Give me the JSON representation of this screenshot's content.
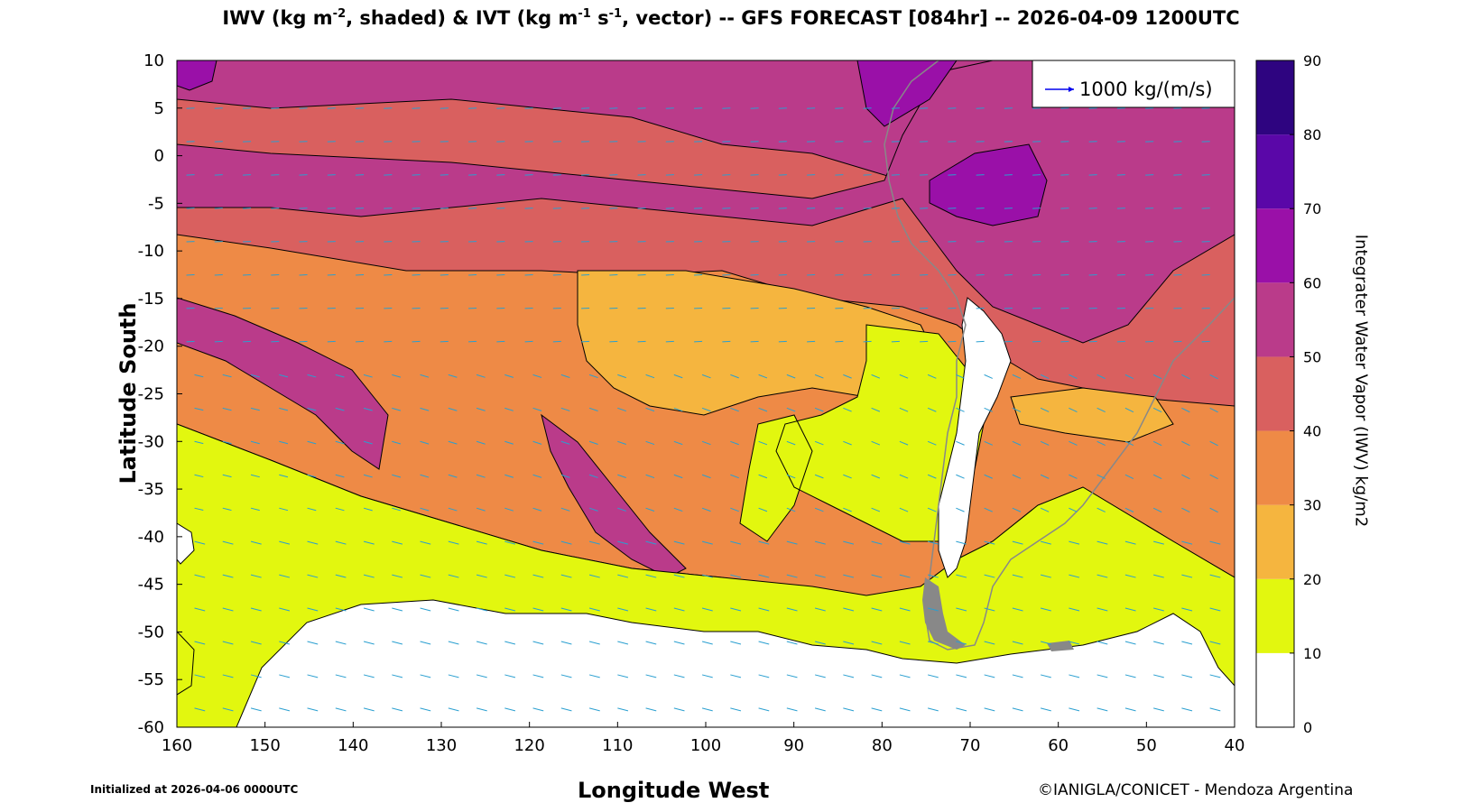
{
  "title": {
    "part1": "IWV (kg m",
    "sup1": "-2",
    "part2": ", shaded) & IVT (kg m",
    "sup2": "-1",
    "part3": " s",
    "sup3": "-1",
    "part4": ", vector) -- GFS FORECAST [084hr] -- 2026-04-09 1200UTC"
  },
  "axes": {
    "xlabel": "Longitude West",
    "ylabel": "Latitude South",
    "xticks": [
      "160",
      "150",
      "140",
      "130",
      "120",
      "110",
      "100",
      "90",
      "80",
      "70",
      "60",
      "50",
      "40"
    ],
    "yticks": [
      "10",
      "5",
      "0",
      "-5",
      "-10",
      "-15",
      "-20",
      "-25",
      "-30",
      "-35",
      "-40",
      "-45",
      "-50",
      "-55",
      "-60"
    ],
    "xlim": [
      160,
      40
    ],
    "ylim": [
      -60,
      10
    ]
  },
  "legend": {
    "label": "1000 kg/(m/s)",
    "arrow_color": "#0000ee"
  },
  "colorbar": {
    "label": "Integrater Water Vapor (IWV) kg/m2",
    "ticks": [
      "90",
      "80",
      "70",
      "60",
      "50",
      "40",
      "30",
      "20",
      "10",
      "0"
    ],
    "levels": [
      {
        "range": [
          0,
          10
        ],
        "color": "#ffffff"
      },
      {
        "range": [
          10,
          20
        ],
        "color": "#e2f70f"
      },
      {
        "range": [
          20,
          30
        ],
        "color": "#f5b53f"
      },
      {
        "range": [
          30,
          40
        ],
        "color": "#ee8a46"
      },
      {
        "range": [
          40,
          50
        ],
        "color": "#d9605f"
      },
      {
        "range": [
          50,
          60
        ],
        "color": "#ba3b8a"
      },
      {
        "range": [
          60,
          70
        ],
        "color": "#9a10a8"
      },
      {
        "range": [
          70,
          80
        ],
        "color": "#5a07a8"
      },
      {
        "range": [
          80,
          90
        ],
        "color": "#2e0480"
      }
    ]
  },
  "vector_color": "#2a9fd0",
  "land_outline_color": "#888888",
  "footer": {
    "initialized": "Initialized at 2026-04-06 0000UTC",
    "credit": "©IANIGLA/CONICET - Mendoza Argentina"
  }
}
